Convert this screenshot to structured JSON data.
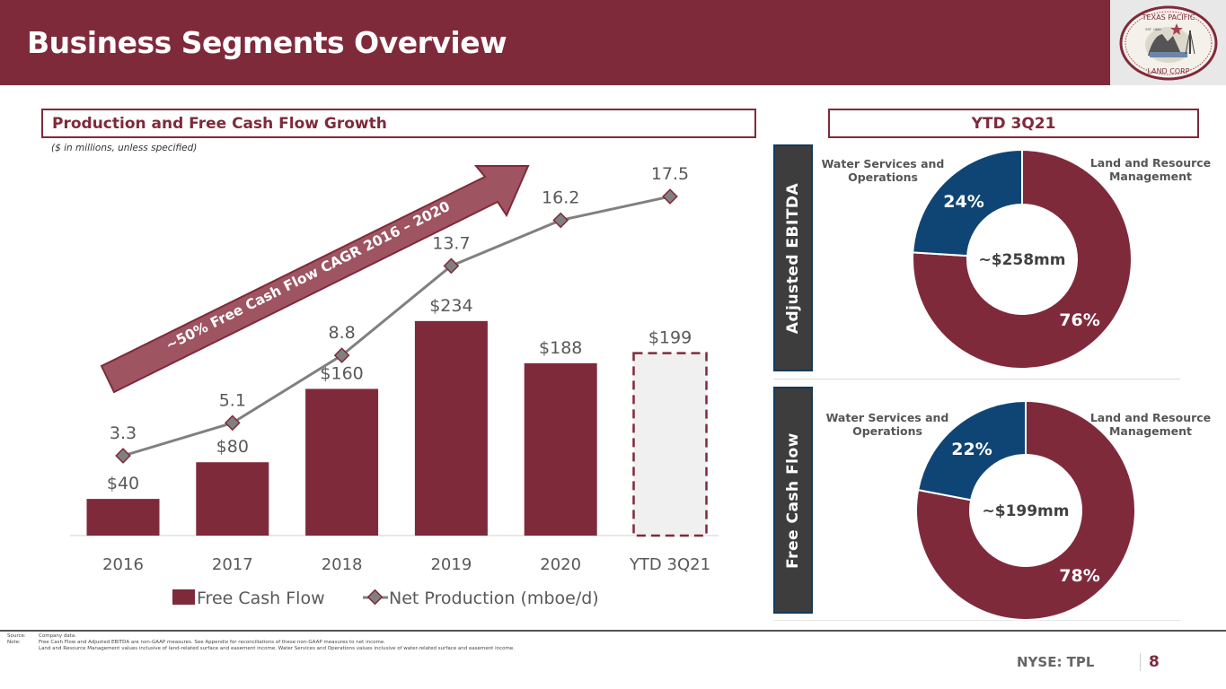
{
  "header": {
    "title": "Business Segments Overview",
    "logo": {
      "top_text": "TEXAS PACIFIC",
      "bottom_text": "LAND CORP",
      "est": "EST. 1888"
    }
  },
  "left_panel": {
    "title": "Production and Free Cash Flow Growth",
    "subtitle": "($ in millions, unless specified)",
    "arrow_text": "~50% Free Cash Flow CAGR 2016 – 2020"
  },
  "right_panel": {
    "title": "YTD 3Q21",
    "ebitda_label": "Adjusted EBITDA",
    "fcf_label": "Free Cash Flow"
  },
  "chart_data": [
    {
      "type": "bar",
      "title": "Production and Free Cash Flow Growth",
      "categories": [
        "2016",
        "2017",
        "2018",
        "2019",
        "2020",
        "YTD 3Q21"
      ],
      "series": [
        {
          "name": "Free Cash Flow",
          "values": [
            40,
            80,
            160,
            234,
            188,
            199
          ],
          "labels": [
            "$40",
            "$80",
            "$160",
            "$234",
            "$188",
            "$199"
          ],
          "color": "#7f2a3b"
        },
        {
          "name": "Net Production (mboe/d)",
          "type": "line",
          "values": [
            3.3,
            5.1,
            8.8,
            13.7,
            16.2,
            17.5
          ],
          "labels": [
            "3.3",
            "5.1",
            "8.8",
            "13.7",
            "16.2",
            "17.5"
          ],
          "color": "#808080"
        }
      ],
      "legend": [
        "Free Cash Flow",
        "Net Production (mboe/d)"
      ],
      "legend_position": "bottom",
      "xlabel": "",
      "ylabel": "",
      "grid": false
    },
    {
      "type": "pie",
      "title": "Adjusted EBITDA",
      "center_label": "~$258mm",
      "slices": [
        {
          "name": "Land and Resource Management",
          "value": 76,
          "label": "76%",
          "color": "#7f2a3b"
        },
        {
          "name": "Water Services and Operations",
          "value": 24,
          "label": "24%",
          "color": "#0f4574"
        }
      ],
      "legend_labels": [
        "Water Services and Operations",
        "Land and Resource Management"
      ]
    },
    {
      "type": "pie",
      "title": "Free Cash Flow",
      "center_label": "~$199mm",
      "slices": [
        {
          "name": "Land and Resource Management",
          "value": 78,
          "label": "78%",
          "color": "#7f2a3b"
        },
        {
          "name": "Water Services and Operations",
          "value": 22,
          "label": "22%",
          "color": "#0f4574"
        }
      ],
      "legend_labels": [
        "Water Services and Operations",
        "Land and Resource Management"
      ]
    }
  ],
  "donut_labels": {
    "water_line1": "Water Services and",
    "water_line2": "Operations",
    "land_line1": "Land and Resource",
    "land_line2": "Management"
  },
  "footer": {
    "source_label": "Source:",
    "source_text": "Company data.",
    "note_label": "Note:",
    "note_line1": "Free Cash Flow and Adjusted EBITDA are non-GAAP measures. See Appendix for reconciliations of these non-GAAP measures to net income.",
    "note_line2": "Land and Resource Management values inclusive of land-related surface and easement income. Water Services and Operations values inclusive of water-related surface and easement income.",
    "ticker": "NYSE: TPL",
    "page_number": "8"
  },
  "colors": {
    "brand": "#7f2a3b",
    "blue": "#0f4574",
    "line": "#808080",
    "dark": "#3d3d3d"
  }
}
